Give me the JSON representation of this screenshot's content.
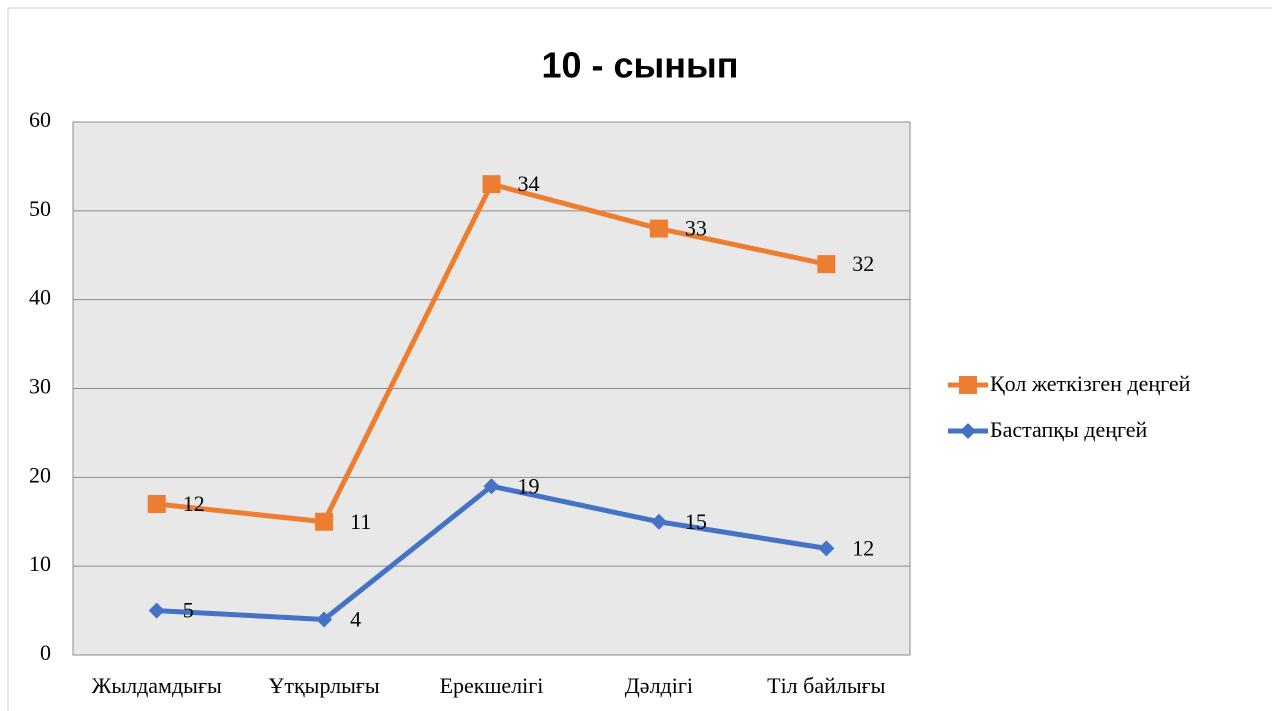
{
  "chart_data": {
    "type": "line",
    "stacked": true,
    "title": "10 - сынып",
    "categories": [
      "Жылдамдығы",
      "Ұтқырлығы",
      "Ерекшелігі",
      "Дәлдігі",
      "Тіл байлығы"
    ],
    "series": [
      {
        "name": "Бастапқы деңгей",
        "color": "#4472c4",
        "marker": "diamond",
        "values": [
          5,
          4,
          19,
          15,
          12
        ]
      },
      {
        "name": "Қол жеткізген деңгей",
        "color": "#ed7d31",
        "marker": "square",
        "values": [
          12,
          11,
          34,
          33,
          32
        ]
      }
    ],
    "ylim": [
      0,
      60
    ],
    "yticks": [
      0,
      10,
      20,
      30,
      40,
      50,
      60
    ],
    "grid": true,
    "legend": "right"
  }
}
